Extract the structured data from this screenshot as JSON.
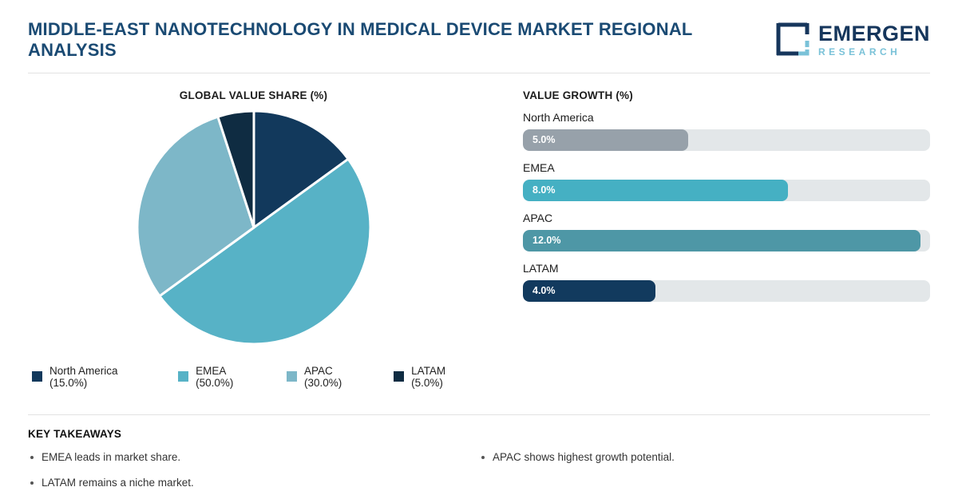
{
  "header": {
    "title": "MIDDLE-EAST NANOTECHNOLOGY IN MEDICAL DEVICE MARKET REGIONAL ANALYSIS",
    "logo": {
      "name": "EMERGEN",
      "sub": "RESEARCH",
      "navy": "#16365c",
      "light_blue": "#7ac2d8"
    }
  },
  "pie": {
    "title": "GLOBAL VALUE SHARE (%)",
    "legend": [
      {
        "label": "North America (15.0%)",
        "color": "#12395c"
      },
      {
        "label": "EMEA (50.0%)",
        "color": "#57b2c6"
      },
      {
        "label": "APAC (30.0%)",
        "color": "#7db7c8"
      },
      {
        "label": "LATAM (5.0%)",
        "color": "#0f2c42"
      }
    ]
  },
  "growth": {
    "title": "VALUE GROWTH (%)",
    "axis_max": 12.3,
    "track_color": "#e3e7e9",
    "rows": [
      {
        "region": "North America",
        "value": 5.0,
        "value_label": "5.0%",
        "color": "#97a1aa"
      },
      {
        "region": "EMEA",
        "value": 8.0,
        "value_label": "8.0%",
        "color": "#45b0c3"
      },
      {
        "region": "APAC",
        "value": 12.0,
        "value_label": "12.0%",
        "color": "#4e97a6"
      },
      {
        "region": "LATAM",
        "value": 4.0,
        "value_label": "4.0%",
        "color": "#123a5e"
      }
    ]
  },
  "takeaways": {
    "heading": "KEY TAKEAWAYS",
    "left": [
      "EMEA leads in market share.",
      "LATAM remains a niche market."
    ],
    "right": [
      "APAC shows highest growth potential."
    ]
  },
  "chart_data": [
    {
      "type": "pie",
      "title": "GLOBAL VALUE SHARE (%)",
      "categories": [
        "North America",
        "EMEA",
        "APAC",
        "LATAM"
      ],
      "values": [
        15.0,
        50.0,
        30.0,
        5.0
      ],
      "colors": [
        "#12395c",
        "#57b2c6",
        "#7db7c8",
        "#0f2c42"
      ],
      "start_angle": "top",
      "direction": "clockwise",
      "legend_position": "bottom",
      "slice_border_color": "#ffffff"
    },
    {
      "type": "bar",
      "orientation": "horizontal",
      "title": "VALUE GROWTH (%)",
      "categories": [
        "North America",
        "EMEA",
        "APAC",
        "LATAM"
      ],
      "values": [
        5.0,
        8.0,
        12.0,
        4.0
      ],
      "xlim": [
        0,
        12.3
      ],
      "colors": [
        "#97a1aa",
        "#45b0c3",
        "#4e97a6",
        "#123a5e"
      ],
      "grid": false,
      "value_labels": [
        "5.0%",
        "8.0%",
        "12.0%",
        "4.0%"
      ]
    }
  ]
}
